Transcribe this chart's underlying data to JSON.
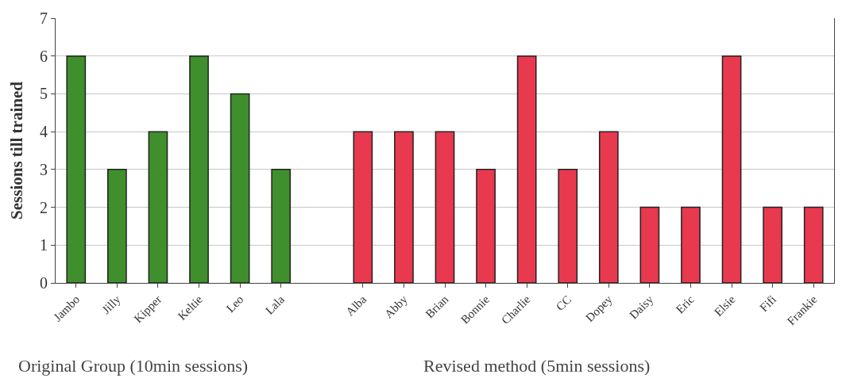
{
  "chart_data": {
    "type": "bar",
    "ylabel": "Sessions till trained",
    "categories": [
      "Jambo",
      "Jilly",
      "Kipper",
      "Keltie",
      "Leo",
      "Lala",
      null,
      "Alba",
      "Abby",
      "Brian",
      "Bonnie",
      "Charlie",
      "CC",
      "Dopey",
      "Daisy",
      "Eric",
      "Elsie",
      "Fifi",
      "Frankie"
    ],
    "values": [
      6,
      3,
      4,
      6,
      5,
      3,
      null,
      4,
      4,
      4,
      3,
      6,
      3,
      4,
      2,
      2,
      6,
      2,
      2
    ],
    "colors": [
      "#3f8f2c",
      "#3f8f2c",
      "#3f8f2c",
      "#3f8f2c",
      "#3f8f2c",
      "#3f8f2c",
      null,
      "#e8394f",
      "#e8394f",
      "#e8394f",
      "#e8394f",
      "#e8394f",
      "#e8394f",
      "#e8394f",
      "#e8394f",
      "#e8394f",
      "#e8394f",
      "#e8394f",
      "#e8394f"
    ],
    "ylim": [
      0,
      7
    ],
    "yticks": [
      0,
      1,
      2,
      3,
      4,
      5,
      6,
      7
    ],
    "grid": "y",
    "annotations": [
      "Original Group (10min sessions)",
      "Revised method (5min sessions)"
    ]
  }
}
